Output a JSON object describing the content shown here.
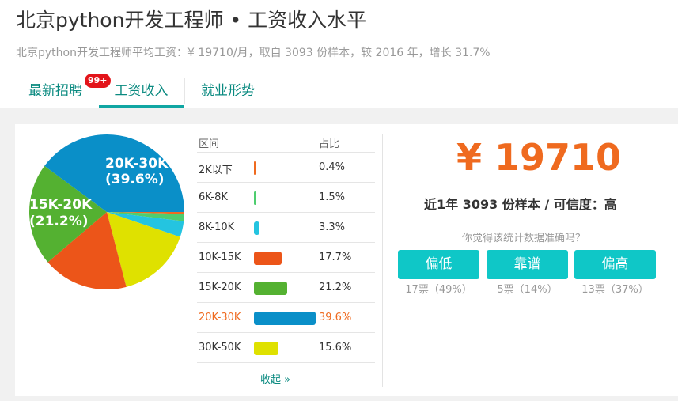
{
  "header": {
    "title": "北京python开发工程师 • 工资收入水平",
    "subtitle": "北京python开发工程师平均工资：¥ 19710/月，取自 3093 份样本，较 2016 年，增长 31.7%"
  },
  "tabs": [
    {
      "label": "最新招聘",
      "badge": "99+"
    },
    {
      "label": "工资收入"
    },
    {
      "label": "就业形势"
    }
  ],
  "table": {
    "header_range": "区间",
    "header_pct": "占比",
    "rows": [
      {
        "range": "2K以下",
        "pct": "0.4%",
        "color": "#ef6a1f"
      },
      {
        "range": "6K-8K",
        "pct": "1.5%",
        "color": "#4ecd6e"
      },
      {
        "range": "8K-10K",
        "pct": "3.3%",
        "color": "#24c4e0"
      },
      {
        "range": "10K-15K",
        "pct": "17.7%",
        "color": "#ec5519"
      },
      {
        "range": "15K-20K",
        "pct": "21.2%",
        "color": "#54b131"
      },
      {
        "range": "20K-30K",
        "pct": "39.6%",
        "color": "#0a8fc8"
      },
      {
        "range": "30K-50K",
        "pct": "15.6%",
        "color": "#dfe100"
      }
    ],
    "collapse_label": "收起 »"
  },
  "chart_data": {
    "type": "pie",
    "categories": [
      "2K以下",
      "6K-8K",
      "8K-10K",
      "10K-15K",
      "15K-20K",
      "20K-30K",
      "30K-50K"
    ],
    "values": [
      0.4,
      1.5,
      3.3,
      17.7,
      21.2,
      39.6,
      15.6
    ],
    "colors": [
      "#ef6a1f",
      "#4ecd6e",
      "#24c4e0",
      "#ec5519",
      "#54b131",
      "#0a8fc8",
      "#dfe100"
    ],
    "labels": [
      {
        "category": "20K-30K",
        "line1": "20K-30K",
        "line2": "(39.6%)"
      },
      {
        "category": "15K-20K",
        "line1": "15K-20K",
        "line2": "(21.2%)"
      }
    ]
  },
  "summary": {
    "salary": "¥ 19710",
    "meta": "近1年 3093 份样本 / 可信度：高",
    "question": "你觉得该统计数据准确吗？",
    "votes": [
      {
        "label": "偏低",
        "count": "17票（49%）"
      },
      {
        "label": "靠谱",
        "count": "5票（14%）"
      },
      {
        "label": "偏高",
        "count": "13票（37%）"
      }
    ]
  }
}
